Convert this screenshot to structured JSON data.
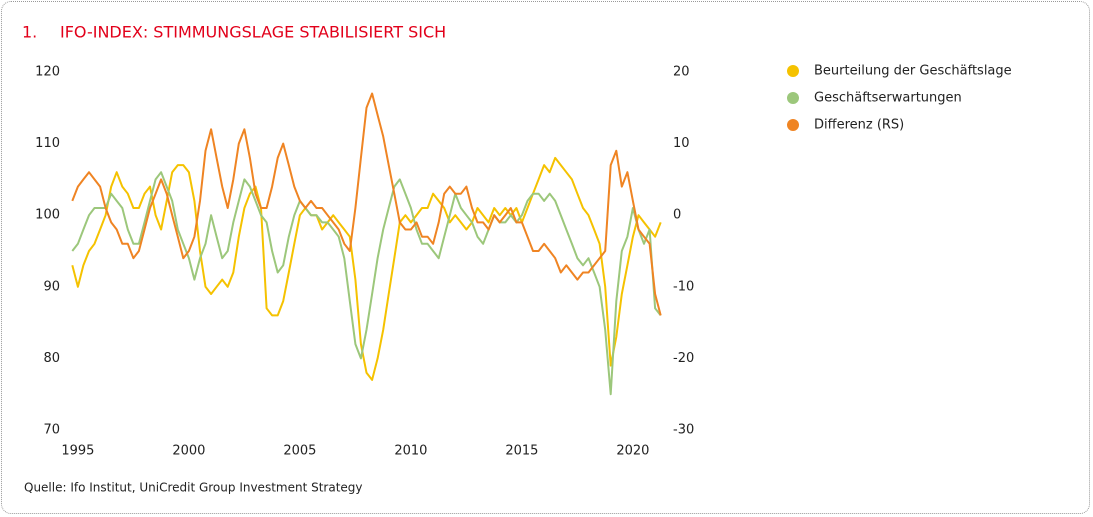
{
  "chart_data": {
    "type": "line",
    "number": "1.",
    "title": "IFO-INDEX: STIMMUNGSLAGE STABILISIERT SICH",
    "source": "Quelle: Ifo Institut, UniCredit Group Investment Strategy",
    "x": [
      1994.75,
      1995,
      1995.25,
      1995.5,
      1995.75,
      1996,
      1996.25,
      1996.5,
      1996.75,
      1997,
      1997.25,
      1997.5,
      1997.75,
      1998,
      1998.25,
      1998.5,
      1998.75,
      1999,
      1999.25,
      1999.5,
      1999.75,
      2000,
      2000.25,
      2000.5,
      2000.75,
      2001,
      2001.25,
      2001.5,
      2001.75,
      2002,
      2002.25,
      2002.5,
      2002.75,
      2003,
      2003.25,
      2003.5,
      2003.75,
      2004,
      2004.25,
      2004.5,
      2004.75,
      2005,
      2005.25,
      2005.5,
      2005.75,
      2006,
      2006.25,
      2006.5,
      2006.75,
      2007,
      2007.25,
      2007.5,
      2007.75,
      2008,
      2008.25,
      2008.5,
      2008.75,
      2009,
      2009.25,
      2009.5,
      2009.75,
      2010,
      2010.25,
      2010.5,
      2010.75,
      2011,
      2011.25,
      2011.5,
      2011.75,
      2012,
      2012.25,
      2012.5,
      2012.75,
      2013,
      2013.25,
      2013.5,
      2013.75,
      2014,
      2014.25,
      2014.5,
      2014.75,
      2015,
      2015.25,
      2015.5,
      2015.75,
      2016,
      2016.25,
      2016.5,
      2016.75,
      2017,
      2017.25,
      2017.5,
      2017.75,
      2018,
      2018.25,
      2018.5,
      2018.75,
      2019,
      2019.25,
      2019.5,
      2019.75,
      2020,
      2020.25,
      2020.5,
      2020.75,
      2021,
      2021.25
    ],
    "series": [
      {
        "name": "Beurteilung der Geschäftslage",
        "color": "#f5c200",
        "axis": "y",
        "values": [
          93,
          90,
          93,
          95,
          96,
          98,
          100,
          104,
          106,
          104,
          103,
          101,
          101,
          103,
          104,
          100,
          98,
          102,
          106,
          107,
          107,
          106,
          102,
          95,
          90,
          89,
          90,
          91,
          90,
          92,
          97,
          101,
          103,
          104,
          101,
          87,
          86,
          86,
          88,
          92,
          96,
          100,
          101,
          100,
          100,
          98,
          99,
          100,
          99,
          98,
          97,
          91,
          82,
          78,
          77,
          80,
          84,
          89,
          94,
          99,
          100,
          99,
          100,
          101,
          101,
          103,
          102,
          101,
          99,
          100,
          99,
          98,
          99,
          101,
          100,
          99,
          101,
          100,
          101,
          100,
          101,
          99,
          101,
          103,
          105,
          107,
          106,
          108,
          107,
          106,
          105,
          103,
          101,
          100,
          98,
          96,
          90,
          79,
          83,
          89,
          93,
          97,
          100,
          99,
          98,
          97,
          99
        ]
      },
      {
        "name": "Geschäftserwartungen",
        "color": "#9cc77b",
        "axis": "y",
        "values": [
          95,
          96,
          98,
          100,
          101,
          101,
          101,
          103,
          102,
          101,
          98,
          96,
          96,
          99,
          102,
          105,
          106,
          104,
          102,
          98,
          96,
          94,
          91,
          94,
          96,
          100,
          97,
          94,
          95,
          99,
          102,
          105,
          104,
          102,
          100,
          99,
          95,
          92,
          93,
          97,
          100,
          102,
          101,
          100,
          100,
          99,
          99,
          98,
          97,
          94,
          88,
          82,
          80,
          84,
          89,
          94,
          98,
          101,
          104,
          105,
          103,
          101,
          98,
          96,
          96,
          95,
          94,
          97,
          100,
          103,
          101,
          100,
          99,
          97,
          96,
          98,
          100,
          99,
          99,
          100,
          99,
          100,
          102,
          103,
          103,
          102,
          103,
          102,
          100,
          98,
          96,
          94,
          93,
          94,
          92,
          90,
          84,
          75,
          88,
          95,
          97,
          101,
          98,
          96,
          98,
          87,
          86
        ]
      },
      {
        "name": "Differenz (RS)",
        "color": "#ef8423",
        "axis": "y2",
        "values": [
          2,
          4,
          5,
          6,
          5,
          4,
          1,
          -1,
          -2,
          -4,
          -4,
          -6,
          -5,
          -2,
          1,
          3,
          5,
          3,
          0,
          -3,
          -6,
          -5,
          -3,
          2,
          9,
          12,
          8,
          4,
          1,
          5,
          10,
          12,
          8,
          3,
          1,
          1,
          4,
          8,
          10,
          7,
          4,
          2,
          1,
          2,
          1,
          1,
          0,
          -1,
          -2,
          -4,
          -5,
          1,
          8,
          15,
          17,
          14,
          11,
          7,
          3,
          -1,
          -2,
          -2,
          -1,
          -3,
          -3,
          -4,
          -1,
          3,
          4,
          3,
          3,
          4,
          1,
          -1,
          -1,
          -2,
          0,
          -1,
          0,
          1,
          -1,
          -1,
          -3,
          -5,
          -5,
          -4,
          -5,
          -6,
          -8,
          -7,
          -8,
          -9,
          -8,
          -8,
          -7,
          -6,
          -5,
          7,
          9,
          4,
          6,
          2,
          -2,
          -3,
          -4,
          -11,
          -14
        ]
      }
    ],
    "xlim": [
      1994.6,
      2021.4
    ],
    "xticks": [
      1995,
      2000,
      2005,
      2010,
      2015,
      2020
    ],
    "ylim": [
      70,
      120
    ],
    "yticks": [
      70,
      80,
      90,
      100,
      110,
      120
    ],
    "y2lim": [
      -30,
      20
    ],
    "y2ticks": [
      -30,
      -20,
      -10,
      0,
      10,
      20
    ],
    "grid": false,
    "legend": "right"
  }
}
